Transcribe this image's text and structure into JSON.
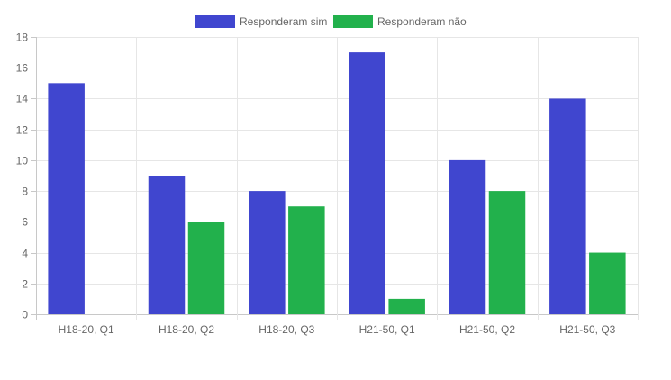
{
  "chart_data": {
    "type": "bar",
    "categories": [
      "H18-20, Q1",
      "H18-20, Q2",
      "H18-20, Q3",
      "H21-50, Q1",
      "H21-50, Q2",
      "H21-50, Q3"
    ],
    "series": [
      {
        "name": "Responderam sim",
        "color": "#4046cf",
        "values": [
          15,
          9,
          8,
          17,
          10,
          14
        ]
      },
      {
        "name": "Responderam não",
        "color": "#22b14c",
        "values": [
          0,
          6,
          7,
          1,
          8,
          4
        ]
      }
    ],
    "y_ticks": [
      "0",
      "2",
      "4",
      "6",
      "8",
      "10",
      "12",
      "14",
      "16",
      "18"
    ],
    "ylim": [
      0,
      18
    ],
    "grid": true,
    "legend_position": "top-center"
  }
}
